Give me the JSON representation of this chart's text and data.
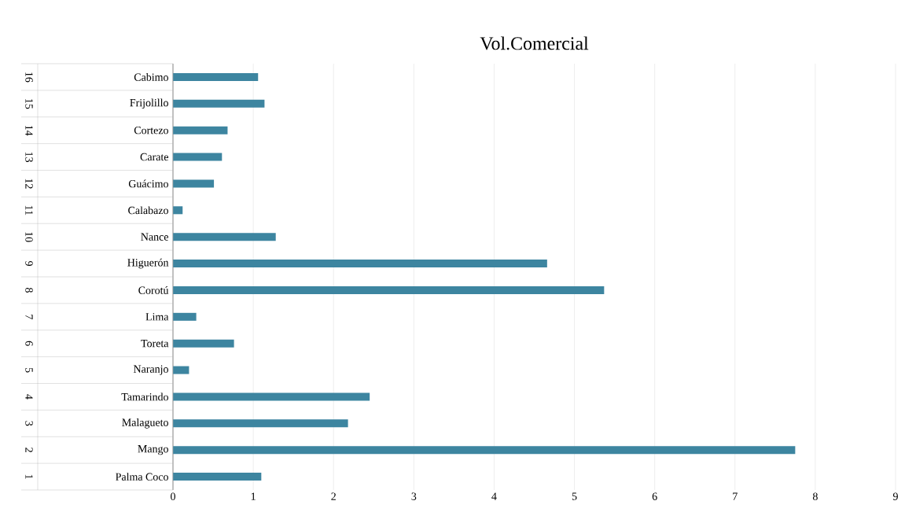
{
  "chart_data": {
    "type": "bar",
    "orientation": "horizontal",
    "title": "Vol.Comercial",
    "categories": [
      "Cabimo",
      "Frijolillo",
      "Cortezo",
      "Carate",
      "Guácimo",
      "Calabazo",
      "Nance",
      "Higuerón",
      "Corotú",
      "Lima",
      "Toreta",
      "Naranjo",
      "Tamarindo",
      "Malagueto",
      "Mango",
      "Palma Coco"
    ],
    "values": [
      1.06,
      1.14,
      0.68,
      0.61,
      0.51,
      0.12,
      1.28,
      4.66,
      5.37,
      0.29,
      0.76,
      0.2,
      2.45,
      2.18,
      7.75,
      1.1
    ],
    "color": "#3d85a0",
    "xlim": [
      0,
      9
    ],
    "xticks": [
      0,
      1,
      2,
      3,
      4,
      5,
      6,
      7,
      8,
      9
    ],
    "grid": "x",
    "annotations": [
      "16",
      "15",
      "14",
      "13",
      "12",
      "11",
      "10",
      "9",
      "8",
      "7",
      "6",
      "5",
      "4",
      "3",
      "2",
      "1"
    ]
  }
}
